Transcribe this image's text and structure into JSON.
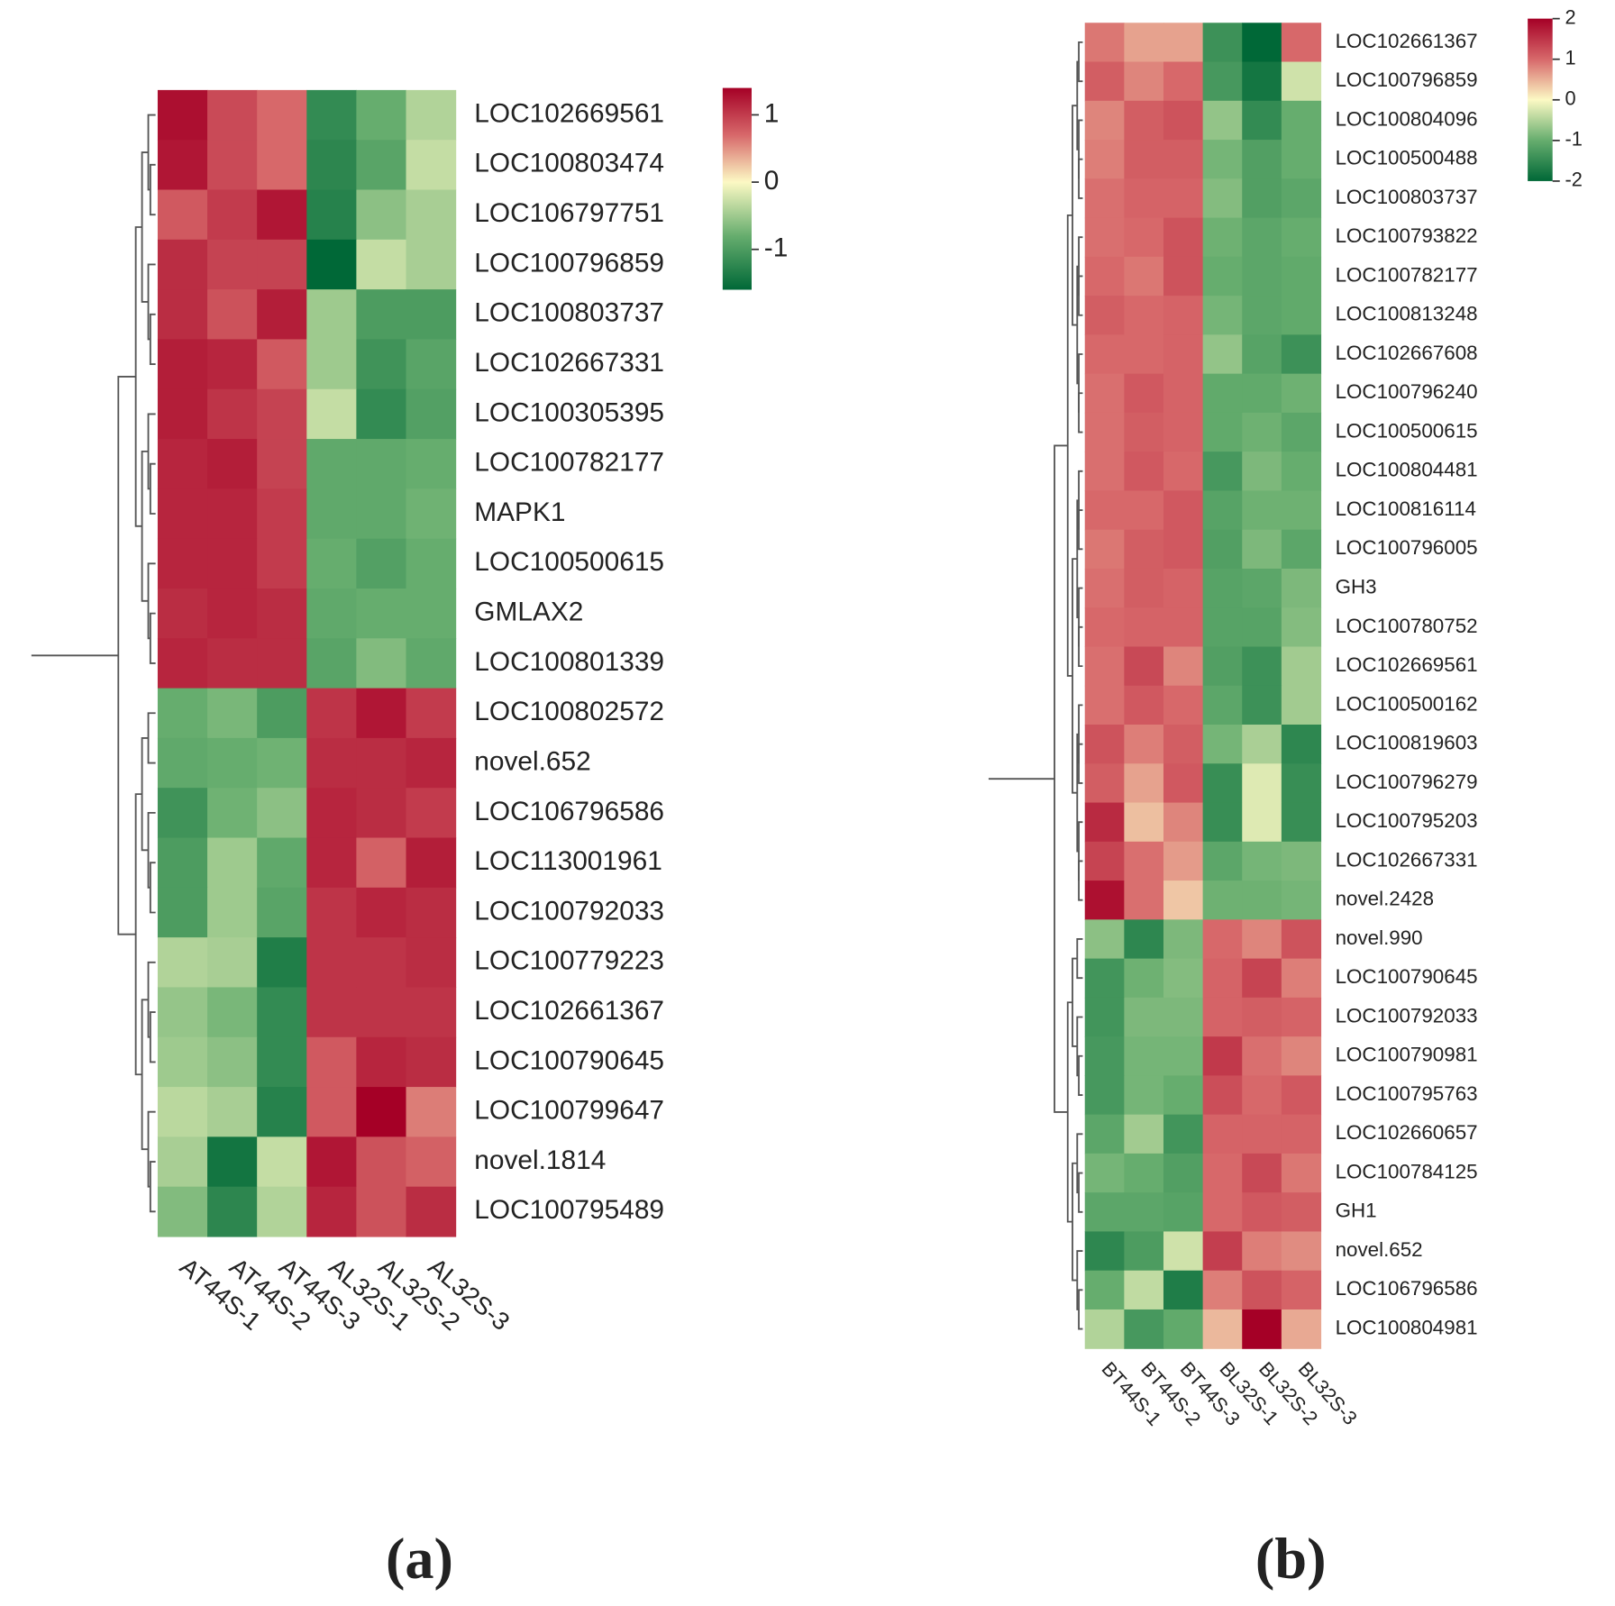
{
  "chart_data": [
    {
      "type": "heatmap",
      "panel_label": "(a)",
      "columns": [
        "AT44S-1",
        "AT44S-2",
        "AT44S-3",
        "AL32S-1",
        "AL32S-2",
        "AL32S-3"
      ],
      "rows": [
        "LOC102669561",
        "LOC100803474",
        "LOC106797751",
        "LOC100796859",
        "LOC100803737",
        "LOC102667331",
        "LOC100305395",
        "LOC100782177",
        "MAPK1",
        "LOC100500615",
        "GMLAX2",
        "LOC100801339",
        "LOC100802572",
        "novel.652",
        "LOC106796586",
        "LOC113001961",
        "LOC100792033",
        "LOC100779223",
        "LOC102661367",
        "LOC100790645",
        "LOC100799647",
        "novel.1814",
        "LOC100795489"
      ],
      "values": [
        [
          1.3,
          0.9,
          0.7,
          -1.2,
          -0.8,
          -0.4
        ],
        [
          1.25,
          0.9,
          0.7,
          -1.25,
          -0.9,
          -0.3
        ],
        [
          0.8,
          1.0,
          1.25,
          -1.3,
          -0.6,
          -0.45
        ],
        [
          1.1,
          0.95,
          0.95,
          -1.6,
          -0.3,
          -0.45
        ],
        [
          1.1,
          0.85,
          1.2,
          -0.5,
          -1.0,
          -1.0
        ],
        [
          1.2,
          1.15,
          0.8,
          -0.5,
          -1.1,
          -0.9
        ],
        [
          1.2,
          1.05,
          0.95,
          -0.3,
          -1.2,
          -0.95
        ],
        [
          1.15,
          1.2,
          0.95,
          -0.85,
          -0.85,
          -0.8
        ],
        [
          1.15,
          1.15,
          1.0,
          -0.85,
          -0.85,
          -0.75
        ],
        [
          1.15,
          1.15,
          1.0,
          -0.8,
          -0.95,
          -0.8
        ],
        [
          1.1,
          1.15,
          1.1,
          -0.85,
          -0.8,
          -0.8
        ],
        [
          1.15,
          1.1,
          1.1,
          -0.9,
          -0.65,
          -0.85
        ],
        [
          -0.8,
          -0.7,
          -1.0,
          1.05,
          1.25,
          1.0
        ],
        [
          -0.85,
          -0.8,
          -0.75,
          1.1,
          1.1,
          1.15
        ],
        [
          -1.1,
          -0.75,
          -0.6,
          1.15,
          1.1,
          1.0
        ],
        [
          -1.0,
          -0.5,
          -0.85,
          1.15,
          0.75,
          1.2
        ],
        [
          -1.0,
          -0.5,
          -0.9,
          1.05,
          1.15,
          1.1
        ],
        [
          -0.4,
          -0.45,
          -1.35,
          1.05,
          1.05,
          1.1
        ],
        [
          -0.55,
          -0.7,
          -1.2,
          1.05,
          1.05,
          1.05
        ],
        [
          -0.5,
          -0.6,
          -1.2,
          0.8,
          1.15,
          1.1
        ],
        [
          -0.35,
          -0.45,
          -1.3,
          0.8,
          1.4,
          0.6
        ],
        [
          -0.45,
          -1.45,
          -0.3,
          1.25,
          0.85,
          0.75
        ],
        [
          -0.65,
          -1.25,
          -0.4,
          1.15,
          0.85,
          1.1
        ]
      ],
      "zlim": [
        -1.6,
        1.4
      ],
      "zticks": [
        1,
        0,
        -1
      ],
      "colormap": [
        "#006837",
        "#66ad6e",
        "#fcf9c4",
        "#d7686a",
        "#a50026"
      ]
    },
    {
      "type": "heatmap",
      "panel_label": "(b)",
      "columns": [
        "BT44S-1",
        "BT44S-2",
        "BT44S-3",
        "BL32S-1",
        "BL32S-2",
        "BL32S-3"
      ],
      "rows": [
        "LOC102661367",
        "LOC100796859",
        "LOC100804096",
        "LOC100500488",
        "LOC100803737",
        "LOC100793822",
        "LOC100782177",
        "LOC100813248",
        "LOC102667608",
        "LOC100796240",
        "LOC100500615",
        "LOC100804481",
        "LOC100816114",
        "LOC100796005",
        "GH3",
        "LOC100780752",
        "LOC102669561",
        "LOC100500162",
        "LOC100819603",
        "LOC100796279",
        "LOC100795203",
        "LOC102667331",
        "novel.2428",
        "novel.990",
        "LOC100790645",
        "LOC100792033",
        "LOC100790981",
        "LOC100795763",
        "LOC102660657",
        "LOC100784125",
        "GH1",
        "novel.652",
        "LOC106796586",
        "LOC100804981"
      ],
      "values": [
        [
          0.9,
          0.6,
          0.6,
          -1.4,
          -2.0,
          1.0
        ],
        [
          1.1,
          0.8,
          1.0,
          -1.3,
          -1.8,
          -0.3
        ],
        [
          0.8,
          1.1,
          1.2,
          -0.7,
          -1.5,
          -1.0
        ],
        [
          0.85,
          1.1,
          1.1,
          -0.9,
          -1.2,
          -1.0
        ],
        [
          0.95,
          1.05,
          1.05,
          -0.8,
          -1.2,
          -1.1
        ],
        [
          0.95,
          1.0,
          1.2,
          -0.95,
          -1.1,
          -1.0
        ],
        [
          1.0,
          0.9,
          1.2,
          -1.0,
          -1.1,
          -1.05
        ],
        [
          1.1,
          1.0,
          1.05,
          -0.9,
          -1.1,
          -1.05
        ],
        [
          1.0,
          1.0,
          1.05,
          -0.7,
          -1.15,
          -1.4
        ],
        [
          0.95,
          1.15,
          1.05,
          -1.05,
          -1.05,
          -0.95
        ],
        [
          0.95,
          1.1,
          1.05,
          -1.05,
          -0.95,
          -1.1
        ],
        [
          0.95,
          1.15,
          1.0,
          -1.3,
          -0.85,
          -1.0
        ],
        [
          1.0,
          1.0,
          1.15,
          -1.15,
          -0.95,
          -0.95
        ],
        [
          0.9,
          1.1,
          1.15,
          -1.2,
          -0.85,
          -1.1
        ],
        [
          0.95,
          1.1,
          1.05,
          -1.15,
          -1.1,
          -0.85
        ],
        [
          1.0,
          1.05,
          1.05,
          -1.15,
          -1.15,
          -0.8
        ],
        [
          0.95,
          1.3,
          0.8,
          -1.2,
          -1.4,
          -0.6
        ],
        [
          0.95,
          1.15,
          1.0,
          -1.1,
          -1.4,
          -0.6
        ],
        [
          1.2,
          0.85,
          1.1,
          -0.9,
          -0.55,
          -1.55
        ],
        [
          1.1,
          0.6,
          1.15,
          -1.45,
          -0.2,
          -1.45
        ],
        [
          1.6,
          0.4,
          0.8,
          -1.45,
          -0.2,
          -1.45
        ],
        [
          1.35,
          0.95,
          0.65,
          -1.1,
          -0.9,
          -0.85
        ],
        [
          1.85,
          0.95,
          0.35,
          -0.95,
          -0.95,
          -0.9
        ],
        [
          -0.75,
          -1.55,
          -0.85,
          1.0,
          0.8,
          1.2
        ],
        [
          -1.35,
          -0.95,
          -0.8,
          1.05,
          1.35,
          0.85
        ],
        [
          -1.35,
          -0.85,
          -0.85,
          1.05,
          1.1,
          1.05
        ],
        [
          -1.3,
          -0.9,
          -0.9,
          1.45,
          0.95,
          0.8
        ],
        [
          -1.3,
          -0.9,
          -1.0,
          1.25,
          1.0,
          1.15
        ],
        [
          -1.1,
          -0.6,
          -1.35,
          1.05,
          1.05,
          1.05
        ],
        [
          -0.9,
          -1.0,
          -1.2,
          1.0,
          1.3,
          0.9
        ],
        [
          -1.1,
          -1.1,
          -1.15,
          1.0,
          1.15,
          1.1
        ],
        [
          -1.55,
          -1.25,
          -0.3,
          1.4,
          0.85,
          0.75
        ],
        [
          -1.0,
          -0.4,
          -1.7,
          0.85,
          1.2,
          1.05
        ],
        [
          -0.5,
          -1.3,
          -1.05,
          0.45,
          2.0,
          0.55
        ]
      ],
      "zlim": [
        -2,
        2
      ],
      "zticks": [
        2,
        1,
        0,
        -1,
        -2
      ],
      "colormap": [
        "#006837",
        "#66ad6e",
        "#fcf9c4",
        "#d7686a",
        "#a50026"
      ]
    }
  ]
}
